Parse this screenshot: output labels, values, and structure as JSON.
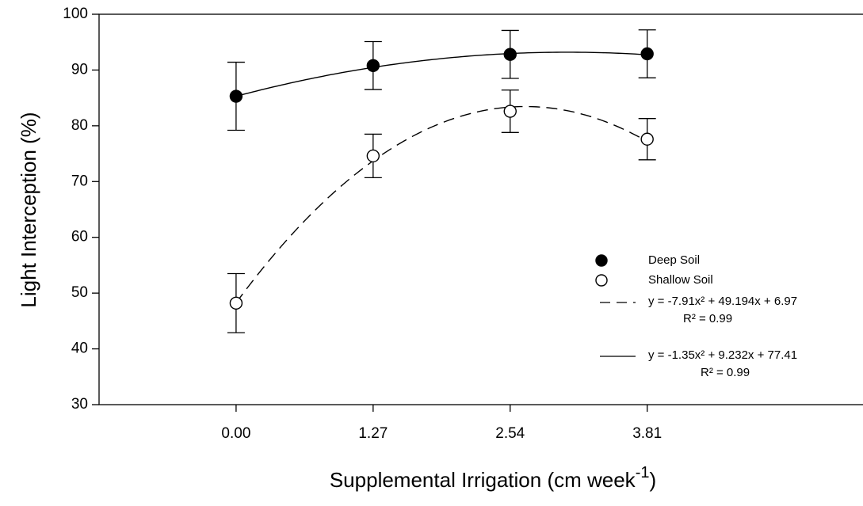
{
  "chart_data": {
    "type": "scatter",
    "x_label": {
      "text": "Supplemental Irrigation (cm week",
      "superscript": "-1",
      "suffix": ")"
    },
    "y_label": "Light Interception (%)",
    "x": [
      0,
      1.27,
      2.54,
      3.81
    ],
    "xlim": [
      -1.27,
      5.81
    ],
    "ylim": [
      30,
      100
    ],
    "xticks": [
      {
        "value": 0,
        "label": "0.00"
      },
      {
        "value": 1.27,
        "label": "1.27"
      },
      {
        "value": 2.54,
        "label": "2.54"
      },
      {
        "value": 3.81,
        "label": "3.81"
      }
    ],
    "yticks": [
      30,
      40,
      50,
      60,
      70,
      80,
      90,
      100
    ],
    "series": [
      {
        "name": "Deep Soil",
        "color": "#000000",
        "filled": true,
        "values": [
          85.3,
          90.8,
          92.8,
          92.9
        ],
        "errors": [
          6.1,
          4.3,
          4.3,
          4.3
        ]
      },
      {
        "name": "Shallow Soil",
        "color": "#000000",
        "filled": false,
        "values": [
          48.2,
          74.6,
          82.6,
          77.6
        ],
        "errors": [
          5.3,
          3.9,
          3.8,
          3.7
        ]
      }
    ],
    "fits": [
      {
        "series": 1,
        "dash": true,
        "equation": "y = -7.91x² + 49.194x + 6.97",
        "r2": "R² = 0.99",
        "coefficients": [
          -7.91,
          49.194,
          6.97
        ]
      },
      {
        "series": 0,
        "dash": false,
        "equation": "y = -1.35x² + 9.232x + 77.41",
        "r2": "R² = 0.99",
        "coefficients": [
          -1.35,
          9.232,
          77.41
        ]
      }
    ]
  }
}
